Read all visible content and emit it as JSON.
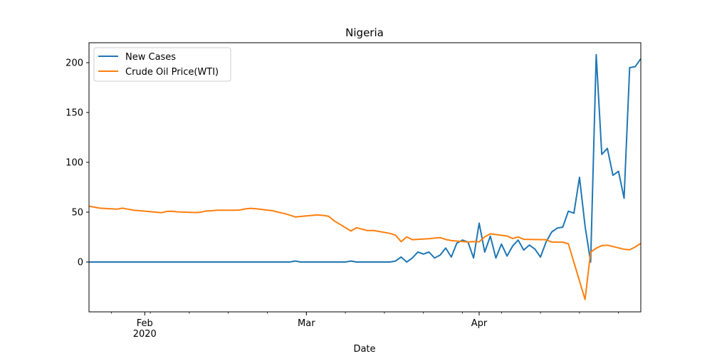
{
  "chart_data": {
    "type": "line",
    "title": "Nigeria",
    "xlabel": "Date",
    "ylabel": "",
    "xlim": [
      "2020-01-22",
      "2020-04-30"
    ],
    "ylim": [
      -50,
      220
    ],
    "yticks": [
      0,
      50,
      100,
      150,
      200
    ],
    "xticks": [
      {
        "date": "2020-02-01",
        "label": "Feb",
        "sublabel": "2020"
      },
      {
        "date": "2020-03-01",
        "label": "Mar",
        "sublabel": ""
      },
      {
        "date": "2020-04-01",
        "label": "Apr",
        "sublabel": ""
      }
    ],
    "legend_position": "upper-left",
    "grid": false,
    "series": [
      {
        "name": "New Cases",
        "color": "#1f77b4",
        "points": [
          [
            "2020-01-22",
            0
          ],
          [
            "2020-01-23",
            0
          ],
          [
            "2020-01-24",
            0
          ],
          [
            "2020-01-25",
            0
          ],
          [
            "2020-01-26",
            0
          ],
          [
            "2020-01-27",
            0
          ],
          [
            "2020-01-28",
            0
          ],
          [
            "2020-01-29",
            0
          ],
          [
            "2020-01-30",
            0
          ],
          [
            "2020-01-31",
            0
          ],
          [
            "2020-02-01",
            0
          ],
          [
            "2020-02-02",
            0
          ],
          [
            "2020-02-03",
            0
          ],
          [
            "2020-02-04",
            0
          ],
          [
            "2020-02-05",
            0
          ],
          [
            "2020-02-06",
            0
          ],
          [
            "2020-02-07",
            0
          ],
          [
            "2020-02-08",
            0
          ],
          [
            "2020-02-09",
            0
          ],
          [
            "2020-02-10",
            0
          ],
          [
            "2020-02-11",
            0
          ],
          [
            "2020-02-12",
            0
          ],
          [
            "2020-02-13",
            0
          ],
          [
            "2020-02-14",
            0
          ],
          [
            "2020-02-15",
            0
          ],
          [
            "2020-02-16",
            0
          ],
          [
            "2020-02-17",
            0
          ],
          [
            "2020-02-18",
            0
          ],
          [
            "2020-02-19",
            0
          ],
          [
            "2020-02-20",
            0
          ],
          [
            "2020-02-21",
            0
          ],
          [
            "2020-02-22",
            0
          ],
          [
            "2020-02-23",
            0
          ],
          [
            "2020-02-24",
            0
          ],
          [
            "2020-02-25",
            0
          ],
          [
            "2020-02-26",
            0
          ],
          [
            "2020-02-27",
            0
          ],
          [
            "2020-02-28",
            1
          ],
          [
            "2020-02-29",
            0
          ],
          [
            "2020-03-01",
            0
          ],
          [
            "2020-03-02",
            0
          ],
          [
            "2020-03-03",
            0
          ],
          [
            "2020-03-04",
            0
          ],
          [
            "2020-03-05",
            0
          ],
          [
            "2020-03-06",
            0
          ],
          [
            "2020-03-07",
            0
          ],
          [
            "2020-03-08",
            0
          ],
          [
            "2020-03-09",
            1
          ],
          [
            "2020-03-10",
            0
          ],
          [
            "2020-03-11",
            0
          ],
          [
            "2020-03-12",
            0
          ],
          [
            "2020-03-13",
            0
          ],
          [
            "2020-03-14",
            0
          ],
          [
            "2020-03-15",
            0
          ],
          [
            "2020-03-16",
            0
          ],
          [
            "2020-03-17",
            1
          ],
          [
            "2020-03-18",
            5
          ],
          [
            "2020-03-19",
            0
          ],
          [
            "2020-03-20",
            4
          ],
          [
            "2020-03-21",
            10
          ],
          [
            "2020-03-22",
            8
          ],
          [
            "2020-03-23",
            10
          ],
          [
            "2020-03-24",
            4
          ],
          [
            "2020-03-25",
            7
          ],
          [
            "2020-03-26",
            14
          ],
          [
            "2020-03-27",
            5
          ],
          [
            "2020-03-28",
            19
          ],
          [
            "2020-03-29",
            22
          ],
          [
            "2020-03-30",
            20
          ],
          [
            "2020-03-31",
            4
          ],
          [
            "2020-04-01",
            39
          ],
          [
            "2020-04-02",
            10
          ],
          [
            "2020-04-03",
            26
          ],
          [
            "2020-04-04",
            4
          ],
          [
            "2020-04-05",
            18
          ],
          [
            "2020-04-06",
            6
          ],
          [
            "2020-04-07",
            16
          ],
          [
            "2020-04-08",
            22
          ],
          [
            "2020-04-09",
            12
          ],
          [
            "2020-04-10",
            17
          ],
          [
            "2020-04-11",
            13
          ],
          [
            "2020-04-12",
            5
          ],
          [
            "2020-04-13",
            20
          ],
          [
            "2020-04-14",
            30
          ],
          [
            "2020-04-15",
            34
          ],
          [
            "2020-04-16",
            35
          ],
          [
            "2020-04-17",
            51
          ],
          [
            "2020-04-18",
            49
          ],
          [
            "2020-04-19",
            85
          ],
          [
            "2020-04-20",
            36
          ],
          [
            "2020-04-21",
            0
          ],
          [
            "2020-04-22",
            208
          ],
          [
            "2020-04-23",
            108
          ],
          [
            "2020-04-24",
            114
          ],
          [
            "2020-04-25",
            87
          ],
          [
            "2020-04-26",
            91
          ],
          [
            "2020-04-27",
            64
          ],
          [
            "2020-04-28",
            195
          ],
          [
            "2020-04-29",
            196
          ],
          [
            "2020-04-30",
            204
          ]
        ]
      },
      {
        "name": "Crude Oil Price(WTI)",
        "color": "#ff7f0e",
        "points": [
          [
            "2020-01-22",
            56
          ],
          [
            "2020-01-23",
            55
          ],
          [
            "2020-01-24",
            54
          ],
          [
            "2020-01-27",
            53
          ],
          [
            "2020-01-28",
            54
          ],
          [
            "2020-01-29",
            53
          ],
          [
            "2020-01-30",
            52
          ],
          [
            "2020-01-31",
            51.5
          ],
          [
            "2020-02-03",
            50
          ],
          [
            "2020-02-04",
            49.5
          ],
          [
            "2020-02-05",
            50.8
          ],
          [
            "2020-02-06",
            50.9
          ],
          [
            "2020-02-07",
            50.3
          ],
          [
            "2020-02-10",
            49.6
          ],
          [
            "2020-02-11",
            49.9
          ],
          [
            "2020-02-12",
            51.2
          ],
          [
            "2020-02-13",
            51.4
          ],
          [
            "2020-02-14",
            52
          ],
          [
            "2020-02-17",
            52
          ],
          [
            "2020-02-18",
            52.1
          ],
          [
            "2020-02-19",
            53.3
          ],
          [
            "2020-02-20",
            53.8
          ],
          [
            "2020-02-21",
            53.4
          ],
          [
            "2020-02-24",
            51.4
          ],
          [
            "2020-02-25",
            49.9
          ],
          [
            "2020-02-26",
            48.7
          ],
          [
            "2020-02-27",
            47.1
          ],
          [
            "2020-02-28",
            45.2
          ],
          [
            "2020-03-02",
            46.8
          ],
          [
            "2020-03-03",
            47.2
          ],
          [
            "2020-03-04",
            46.8
          ],
          [
            "2020-03-05",
            45.9
          ],
          [
            "2020-03-06",
            41.3
          ],
          [
            "2020-03-09",
            31.1
          ],
          [
            "2020-03-10",
            34.4
          ],
          [
            "2020-03-11",
            32.9
          ],
          [
            "2020-03-12",
            31.5
          ],
          [
            "2020-03-13",
            31.7
          ],
          [
            "2020-03-16",
            28.7
          ],
          [
            "2020-03-17",
            26.9
          ],
          [
            "2020-03-18",
            20.4
          ],
          [
            "2020-03-19",
            25.2
          ],
          [
            "2020-03-20",
            22.4
          ],
          [
            "2020-03-23",
            23.4
          ],
          [
            "2020-03-24",
            24
          ],
          [
            "2020-03-25",
            24.5
          ],
          [
            "2020-03-26",
            22.6
          ],
          [
            "2020-03-27",
            21.5
          ],
          [
            "2020-03-30",
            20.1
          ],
          [
            "2020-03-31",
            20.5
          ],
          [
            "2020-04-01",
            20.3
          ],
          [
            "2020-04-02",
            25.3
          ],
          [
            "2020-04-03",
            28.3
          ],
          [
            "2020-04-06",
            26.1
          ],
          [
            "2020-04-07",
            23.6
          ],
          [
            "2020-04-08",
            25.1
          ],
          [
            "2020-04-09",
            22.8
          ],
          [
            "2020-04-13",
            22.4
          ],
          [
            "2020-04-14",
            20.1
          ],
          [
            "2020-04-15",
            19.9
          ],
          [
            "2020-04-16",
            19.9
          ],
          [
            "2020-04-17",
            18.3
          ],
          [
            "2020-04-20",
            -37.6
          ],
          [
            "2020-04-21",
            10
          ],
          [
            "2020-04-22",
            13.8
          ],
          [
            "2020-04-23",
            16.5
          ],
          [
            "2020-04-24",
            16.9
          ],
          [
            "2020-04-27",
            12.8
          ],
          [
            "2020-04-28",
            12.3
          ],
          [
            "2020-04-29",
            15.1
          ],
          [
            "2020-04-30",
            18.8
          ]
        ]
      }
    ]
  }
}
